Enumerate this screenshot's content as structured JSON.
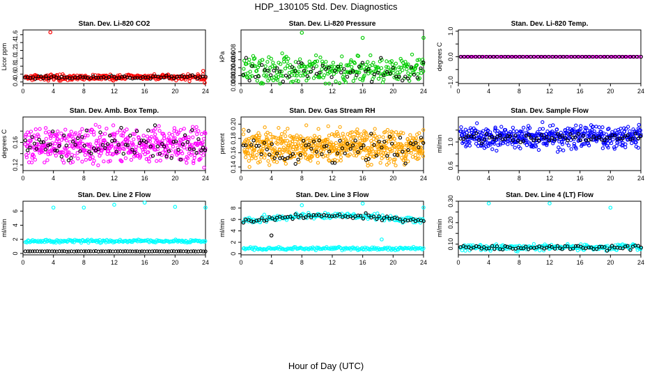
{
  "title": "HDP_130105  Std. Dev. Diagnostics",
  "xlabel": "Hour of Day (UTC)",
  "chart_data": [
    {
      "type": "scatter",
      "title": "Stan. Dev. Li-820 CO2",
      "ylabel": "Licor ppm",
      "xlim": [
        0,
        24
      ],
      "ylim": [
        0.36,
        1.72
      ],
      "xticks": [
        0,
        4,
        8,
        12,
        16,
        20,
        24
      ],
      "yticks": [
        0.4,
        0.6,
        0.8,
        1.0,
        1.2,
        1.4,
        1.6
      ],
      "ytick_labels": [
        "0.4",
        "0.6",
        "0.8",
        "1.0",
        "1.2",
        "1.4",
        "1.6"
      ],
      "series": [
        {
          "color": "#ff0000",
          "base": 0.52,
          "spread": 0.05,
          "n": 300
        },
        {
          "color": "#000000",
          "base": 0.52,
          "spread": 0.03,
          "n": 70
        }
      ],
      "outliers": [
        {
          "x": 3.6,
          "y": 1.66,
          "color": "#ff0000"
        },
        {
          "x": 23.7,
          "y": 0.68,
          "color": "#ff0000"
        },
        {
          "x": 23.9,
          "y": 0.38,
          "color": "#ff0000"
        }
      ]
    },
    {
      "type": "scatter",
      "title": "Stan. Dev. Li-820 Pressure",
      "ylabel": "kPa",
      "xlim": [
        0,
        24
      ],
      "ylim": [
        0,
        0.0135
      ],
      "xticks": [
        0,
        4,
        8,
        12,
        16,
        20,
        24
      ],
      "yticks": [
        0,
        0.002,
        0.004,
        0.006,
        0.008
      ],
      "ytick_labels": [
        "0.000",
        "0.002",
        "0.004",
        "0.006",
        "0.008"
      ],
      "series": [
        {
          "color": "#00cc00",
          "base": 0.0035,
          "spread": 0.0025,
          "n": 300
        },
        {
          "color": "#000000",
          "base": 0.003,
          "spread": 0.002,
          "n": 60
        }
      ],
      "outliers": [
        {
          "x": 8,
          "y": 0.0128,
          "color": "#00cc00"
        },
        {
          "x": 16,
          "y": 0.0115,
          "color": "#00cc00"
        },
        {
          "x": 24,
          "y": 0.0115,
          "color": "#00cc00"
        }
      ]
    },
    {
      "type": "scatter",
      "title": "Stan. Dev. Li-820 Temp.",
      "ylabel": "degrees C",
      "xlim": [
        0,
        24
      ],
      "ylim": [
        -1.05,
        1.05
      ],
      "xticks": [
        0,
        4,
        8,
        12,
        16,
        20,
        24
      ],
      "yticks": [
        -1,
        -0.5,
        0,
        0.5,
        1
      ],
      "ytick_labels": [
        "−1.0",
        "0.0",
        "1.0"
      ],
      "ytick_values": [
        -1,
        0,
        1
      ],
      "series": [
        {
          "color": "#ff00ff",
          "base": 0,
          "spread": 0,
          "n": 140
        },
        {
          "color": "#000000",
          "base": 0,
          "spread": 0,
          "n": 50
        }
      ],
      "outliers": []
    },
    {
      "type": "scatter",
      "title": "Stan. Dev. Amb. Box Temp.",
      "ylabel": "degrees C",
      "xlim": [
        0,
        24
      ],
      "ylim": [
        0.11,
        0.205
      ],
      "xticks": [
        0,
        4,
        8,
        12,
        16,
        20,
        24
      ],
      "yticks": [
        0.12,
        0.14,
        0.16,
        0.18
      ],
      "ytick_labels": [
        "0.12",
        "0.16"
      ],
      "ytick_values": [
        0.12,
        0.16
      ],
      "series": [
        {
          "color": "#ff00ff",
          "base": 0.155,
          "spread": 0.022,
          "n": 500
        },
        {
          "color": "#000000",
          "base": 0.155,
          "spread": 0.02,
          "n": 80
        }
      ],
      "outliers": []
    },
    {
      "type": "scatter",
      "title": "Stan. Dev. Gas Stream RH",
      "ylabel": "percent",
      "xlim": [
        0,
        24
      ],
      "ylim": [
        0.135,
        0.21
      ],
      "xticks": [
        0,
        4,
        8,
        12,
        16,
        20,
        24
      ],
      "yticks": [
        0.14,
        0.16,
        0.18,
        0.2
      ],
      "ytick_labels": [
        "0.14",
        "0.16",
        "0.18",
        "0.20"
      ],
      "series": [
        {
          "color": "#ffa500",
          "base": 0.168,
          "spread": 0.016,
          "n": 600
        },
        {
          "color": "#000000",
          "base": 0.165,
          "spread": 0.014,
          "n": 70
        }
      ],
      "outliers": []
    },
    {
      "type": "scatter",
      "title": "Stan. Dev. Sample Flow",
      "ylabel": "ml/min",
      "xlim": [
        0,
        24
      ],
      "ylim": [
        0.52,
        1.42
      ],
      "xticks": [
        0,
        4,
        8,
        12,
        16,
        20,
        24
      ],
      "yticks": [
        0.6,
        0.8,
        1.0,
        1.2
      ],
      "ytick_labels": [
        "0.6",
        "1.0"
      ],
      "ytick_values": [
        0.6,
        1.0
      ],
      "series": [
        {
          "color": "#0000ff",
          "base": 1.08,
          "spread": 0.13,
          "n": 500
        },
        {
          "color": "#000000",
          "base": 1.07,
          "spread": 0.05,
          "n": 70
        }
      ],
      "outliers": []
    },
    {
      "type": "scatter",
      "title": "Stan. Dev. Line 2 Flow",
      "ylabel": "ml/min",
      "xlim": [
        0,
        24
      ],
      "ylim": [
        -0.2,
        7.4
      ],
      "xticks": [
        0,
        4,
        8,
        12,
        16,
        20,
        24
      ],
      "yticks": [
        0,
        2,
        4,
        6
      ],
      "ytick_labels": [
        "0",
        "2",
        "4",
        "6"
      ],
      "series": [
        {
          "color": "#00ffff",
          "base": 1.75,
          "spread": 0.15,
          "n": 200
        },
        {
          "color": "#000000",
          "base": 0.3,
          "spread": 0.02,
          "n": 75
        }
      ],
      "outliers": [
        {
          "x": 4,
          "y": 6.5,
          "color": "#00ffff"
        },
        {
          "x": 8,
          "y": 6.5,
          "color": "#00ffff"
        },
        {
          "x": 12,
          "y": 6.9,
          "color": "#00ffff"
        },
        {
          "x": 16,
          "y": 7.2,
          "color": "#00ffff"
        },
        {
          "x": 20,
          "y": 6.6,
          "color": "#00ffff"
        },
        {
          "x": 24,
          "y": 6.5,
          "color": "#00ffff"
        }
      ]
    },
    {
      "type": "scatter",
      "title": "Stan. Dev. Line 3 Flow",
      "ylabel": "ml/min",
      "xlim": [
        0,
        24
      ],
      "ylim": [
        -0.2,
        9.2
      ],
      "xticks": [
        0,
        4,
        8,
        12,
        16,
        20,
        24
      ],
      "yticks": [
        0,
        2,
        4,
        6,
        8
      ],
      "ytick_labels": [
        "0",
        "2",
        "4",
        "6",
        "8"
      ],
      "series": [
        {
          "color": "#00ffff",
          "base": 0.9,
          "spread": 0.2,
          "n": 180
        },
        {
          "color": "#00ffff",
          "base": 6.3,
          "spread": 0.4,
          "n": 180,
          "arch": 1.0
        },
        {
          "color": "#000000",
          "base": 6.3,
          "spread": 0.3,
          "n": 70,
          "arch": 1.0
        }
      ],
      "outliers": [
        {
          "x": 4,
          "y": 3.2,
          "color": "#000000"
        },
        {
          "x": 8,
          "y": 8.5,
          "color": "#00ffff"
        },
        {
          "x": 16,
          "y": 8.8,
          "color": "#00ffff"
        },
        {
          "x": 18.5,
          "y": 2.5,
          "color": "#00ffff"
        },
        {
          "x": 24,
          "y": 8.1,
          "color": "#00ffff"
        }
      ]
    },
    {
      "type": "scatter",
      "title": "Stan. Dev. Line 4 (LT) Flow",
      "ylabel": "ml/min",
      "xlim": [
        0,
        24
      ],
      "ylim": [
        0.05,
        0.3
      ],
      "xticks": [
        0,
        4,
        8,
        12,
        16,
        20,
        24
      ],
      "yticks": [
        0.1,
        0.15,
        0.2,
        0.25,
        0.3
      ],
      "ytick_labels": [
        "0.10",
        "0.20",
        "0.30"
      ],
      "ytick_values": [
        0.1,
        0.2,
        0.3
      ],
      "series": [
        {
          "color": "#00ffff",
          "base": 0.085,
          "spread": 0.01,
          "n": 220
        },
        {
          "color": "#000000",
          "base": 0.085,
          "spread": 0.008,
          "n": 70
        }
      ],
      "outliers": [
        {
          "x": 4,
          "y": 0.29,
          "color": "#00ffff"
        },
        {
          "x": 12,
          "y": 0.29,
          "color": "#00ffff"
        },
        {
          "x": 20,
          "y": 0.27,
          "color": "#00ffff"
        }
      ]
    }
  ]
}
